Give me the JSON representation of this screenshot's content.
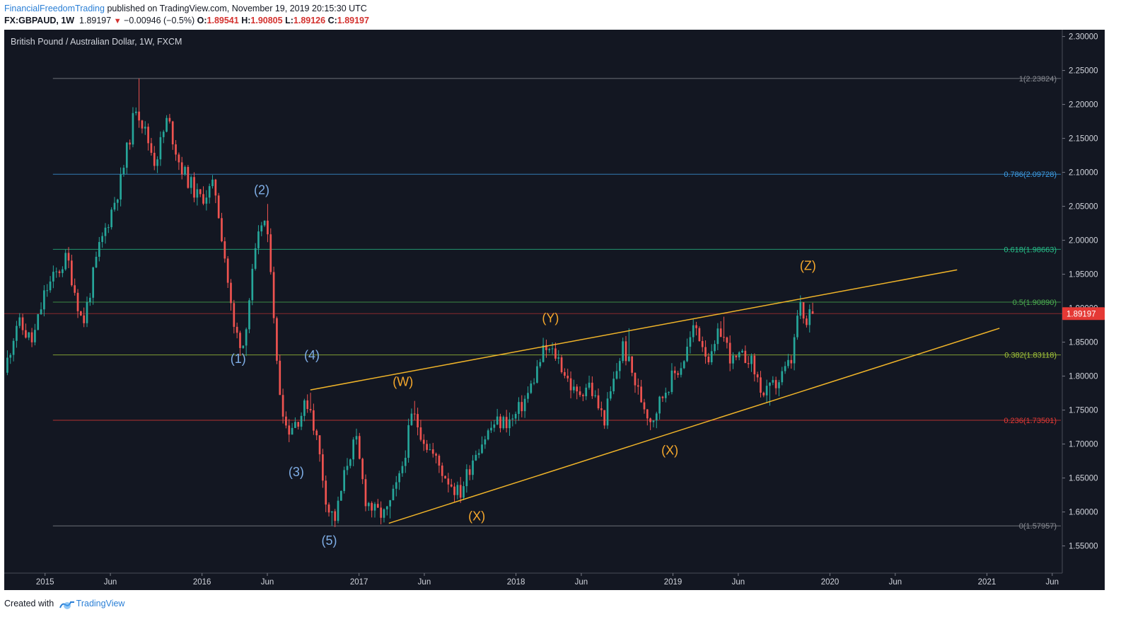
{
  "header": {
    "author": "FinancialFreedomTrading",
    "published_text": "published on TradingView.com, November 19, 2019 20:15:30 UTC",
    "symbol": "FX:GBPAUD, 1W",
    "last": "1.89197",
    "change": "−0.00946 (−0.5%)",
    "o_label": "O:",
    "o_value": "1.89541",
    "h_label": "H:",
    "h_value": "1.90805",
    "l_label": "L:",
    "l_value": "1.89126",
    "c_label": "C:",
    "c_value": "1.89197"
  },
  "footer": {
    "created_with": "Created with",
    "brand": "TradingView"
  },
  "colors": {
    "background": "#131722",
    "bull": "#26a69a",
    "bear": "#ef5350",
    "wedge": "#f0b429",
    "label_blue": "#7faee6",
    "label_orange": "#f6a82c",
    "price_tag": "#e53935"
  },
  "chart_data": {
    "type": "candlestick",
    "title": "British Pound / Australian Dollar, 1W, FXCM",
    "ylim": [
      1.51,
      2.31
    ],
    "y_ticks": [
      "2.30000",
      "2.25000",
      "2.20000",
      "2.15000",
      "2.10000",
      "2.05000",
      "2.00000",
      "1.95000",
      "1.90000",
      "1.85000",
      "1.80000",
      "1.75000",
      "1.70000",
      "1.65000",
      "1.60000",
      "1.55000"
    ],
    "x_ticks": [
      {
        "label": "2015",
        "t": 2015.0
      },
      {
        "label": "Jun",
        "t": 2015.416
      },
      {
        "label": "2016",
        "t": 2016.0
      },
      {
        "label": "Jun",
        "t": 2016.416
      },
      {
        "label": "2017",
        "t": 2017.0
      },
      {
        "label": "Jun",
        "t": 2017.416
      },
      {
        "label": "2018",
        "t": 2018.0
      },
      {
        "label": "Jun",
        "t": 2018.416
      },
      {
        "label": "2019",
        "t": 2019.0
      },
      {
        "label": "Jun",
        "t": 2019.416
      },
      {
        "label": "2020",
        "t": 2020.0
      },
      {
        "label": "Jun",
        "t": 2020.416
      },
      {
        "label": "2021",
        "t": 2021.0
      },
      {
        "label": "Jun",
        "t": 2021.416
      }
    ],
    "last_price": {
      "value": 1.89197,
      "label": "1.89197"
    },
    "fib_levels": [
      {
        "value": 2.23824,
        "label": "1(2.23824)",
        "color": "#8a8d94"
      },
      {
        "value": 2.09728,
        "label": "0.786(2.09728)",
        "color": "#3d9ee6"
      },
      {
        "value": 1.98663,
        "label": "0.618(1.98663)",
        "color": "#27c08a"
      },
      {
        "value": 1.9089,
        "label": "0.5(1.90890)",
        "color": "#4caf50"
      },
      {
        "value": 1.83118,
        "label": "0.382(1.83118)",
        "color": "#a4c739"
      },
      {
        "value": 1.73501,
        "label": "0.236(1.73501)",
        "color": "#e53935"
      },
      {
        "value": 1.57957,
        "label": "0(1.57957)",
        "color": "#8a8d94"
      }
    ],
    "fib_start_t": 2015.05,
    "trendlines": [
      {
        "t1": 2016.69,
        "p1": 1.7797,
        "t2": 2020.81,
        "p2": 1.9565
      },
      {
        "t1": 2017.19,
        "p1": 1.5834,
        "t2": 2021.08,
        "p2": 1.8705
      }
    ],
    "wave_labels": [
      {
        "text": "(2)",
        "t": 2016.38,
        "p": 2.068,
        "color": "blue"
      },
      {
        "text": "(1)",
        "t": 2016.23,
        "p": 1.8195,
        "color": "blue"
      },
      {
        "text": "(4)",
        "t": 2016.7,
        "p": 1.8245,
        "color": "blue"
      },
      {
        "text": "(3)",
        "t": 2016.6,
        "p": 1.6525,
        "color": "blue"
      },
      {
        "text": "(5)",
        "t": 2016.81,
        "p": 1.5515,
        "color": "blue"
      },
      {
        "text": "(W)",
        "t": 2017.28,
        "p": 1.7855,
        "color": "orange"
      },
      {
        "text": "(Y)",
        "t": 2018.22,
        "p": 1.8795,
        "color": "orange"
      },
      {
        "text": "(X)",
        "t": 2017.75,
        "p": 1.5875,
        "color": "orange"
      },
      {
        "text": "(X)",
        "t": 2018.98,
        "p": 1.6845,
        "color": "orange"
      },
      {
        "text": "(Z)",
        "t": 2019.86,
        "p": 1.9565,
        "color": "orange"
      }
    ],
    "waypoints": [
      [
        2014.76,
        1.805
      ],
      [
        2014.84,
        1.88
      ],
      [
        2014.94,
        1.85
      ],
      [
        2015.02,
        1.925
      ],
      [
        2015.16,
        1.975
      ],
      [
        2015.26,
        1.875
      ],
      [
        2015.36,
        1.985
      ],
      [
        2015.5,
        2.085
      ],
      [
        2015.6,
        2.2
      ],
      [
        2015.72,
        2.115
      ],
      [
        2015.8,
        2.18
      ],
      [
        2015.88,
        2.11
      ],
      [
        2016.0,
        2.06
      ],
      [
        2016.1,
        2.08
      ],
      [
        2016.16,
        1.985
      ],
      [
        2016.22,
        1.87
      ],
      [
        2016.28,
        1.845
      ],
      [
        2016.35,
        1.965
      ],
      [
        2016.41,
        2.04
      ],
      [
        2016.46,
        1.96
      ],
      [
        2016.5,
        1.8
      ],
      [
        2016.56,
        1.72
      ],
      [
        2016.64,
        1.74
      ],
      [
        2016.7,
        1.765
      ],
      [
        2016.76,
        1.695
      ],
      [
        2016.82,
        1.605
      ],
      [
        2016.87,
        1.59
      ],
      [
        2016.95,
        1.68
      ],
      [
        2017.0,
        1.705
      ],
      [
        2017.06,
        1.62
      ],
      [
        2017.12,
        1.6
      ],
      [
        2017.19,
        1.595
      ],
      [
        2017.28,
        1.65
      ],
      [
        2017.36,
        1.745
      ],
      [
        2017.45,
        1.7
      ],
      [
        2017.55,
        1.66
      ],
      [
        2017.66,
        1.625
      ],
      [
        2017.76,
        1.69
      ],
      [
        2017.88,
        1.73
      ],
      [
        2018.0,
        1.735
      ],
      [
        2018.1,
        1.775
      ],
      [
        2018.2,
        1.84
      ],
      [
        2018.28,
        1.83
      ],
      [
        2018.4,
        1.77
      ],
      [
        2018.48,
        1.79
      ],
      [
        2018.58,
        1.735
      ],
      [
        2018.7,
        1.845
      ],
      [
        2018.8,
        1.775
      ],
      [
        2018.88,
        1.735
      ],
      [
        2018.98,
        1.785
      ],
      [
        2019.08,
        1.82
      ],
      [
        2019.16,
        1.875
      ],
      [
        2019.26,
        1.82
      ],
      [
        2019.32,
        1.87
      ],
      [
        2019.4,
        1.82
      ],
      [
        2019.5,
        1.83
      ],
      [
        2019.6,
        1.77
      ],
      [
        2019.7,
        1.795
      ],
      [
        2019.78,
        1.825
      ],
      [
        2019.82,
        1.905
      ],
      [
        2019.88,
        1.865
      ],
      [
        2019.89,
        1.892
      ]
    ],
    "extremes": [
      {
        "t": 2015.6,
        "high": 2.2382
      },
      {
        "t": 2016.82,
        "low": 1.5796
      },
      {
        "t": 2016.41,
        "high": 2.0535
      },
      {
        "t": 2016.28,
        "low": 1.8295
      },
      {
        "t": 2016.7,
        "high": 1.7755
      },
      {
        "t": 2017.19,
        "low": 1.5905
      },
      {
        "t": 2017.36,
        "high": 1.7635
      },
      {
        "t": 2017.66,
        "low": 1.6175
      },
      {
        "t": 2018.26,
        "high": 1.8495
      },
      {
        "t": 2018.86,
        "low": 1.7205
      },
      {
        "t": 2018.72,
        "high": 1.8705
      },
      {
        "t": 2019.32,
        "high": 1.8875
      },
      {
        "t": 2019.62,
        "low": 1.7565
      },
      {
        "t": 2019.84,
        "high": 1.9085
      }
    ],
    "candle_count": 264
  }
}
